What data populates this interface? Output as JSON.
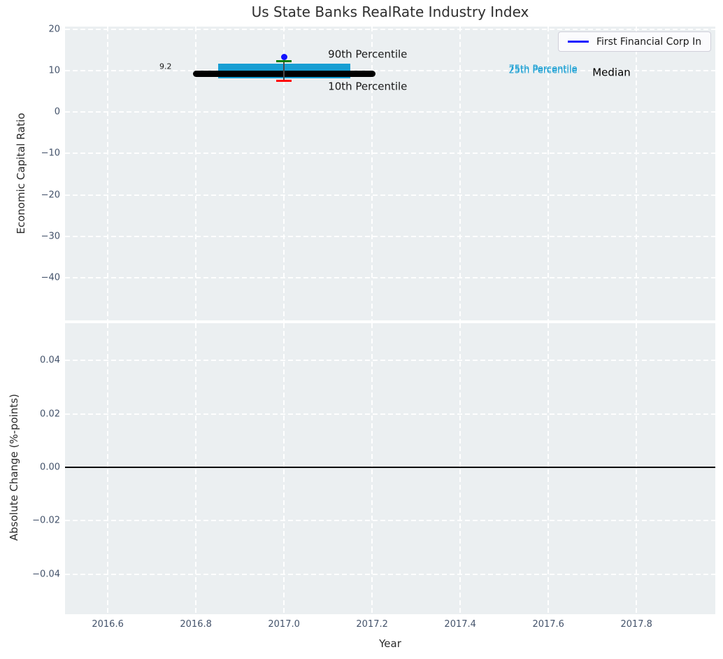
{
  "title": "Us State Banks RealRate Industry Index",
  "legend": {
    "label": "First Financial Corp In",
    "line_color": "#1414ff"
  },
  "colors": {
    "figure_bg": "#ffffff",
    "axes_bg": "#ebeff1",
    "grid": "#ffffff",
    "tick_label": "#44536b",
    "title_text": "#2e2e2e",
    "axis_label": "#2b2b2b",
    "band": "#179ed3",
    "median_line": "#000000",
    "whisker": "#4a4a4a",
    "p90_cap": "#007d00",
    "p10_cap": "#ff0000",
    "company_dot": "#1414ff",
    "zero_line": "#000000"
  },
  "chart_data": [
    {
      "type": "line",
      "panel": "top",
      "ylabel": "Economic Capital Ratio",
      "xlim": [
        2016.503,
        2017.979
      ],
      "ylim": [
        -50.3,
        20.6
      ],
      "grid": true,
      "xticks": {
        "values": [
          2016.6,
          2016.8,
          2017.0,
          2017.2,
          2017.4,
          2017.6,
          2017.8
        ],
        "labels": [
          "2016.6",
          "2016.8",
          "2017.0",
          "2017.2",
          "2017.4",
          "2017.6",
          "2017.8"
        ],
        "show_labels": false
      },
      "yticks": {
        "values": [
          20,
          10,
          0,
          -10,
          -20,
          -30,
          -40
        ],
        "labels": [
          "20",
          "10",
          "0",
          "−10",
          "−20",
          "−30",
          "−40"
        ]
      },
      "series": [
        {
          "name": "First Financial Corp In",
          "x": [
            2017.0
          ],
          "y": [
            13.3
          ],
          "style": "point",
          "color": "#1414ff"
        }
      ],
      "industry_percentiles": {
        "x": 2017.0,
        "p10": 7.5,
        "p25": 8.05,
        "median": 9.2,
        "p75": 11.6,
        "p90": 12.2,
        "band_x": [
          2016.85,
          2017.15
        ],
        "median_x": [
          2016.8,
          2017.2
        ],
        "cap_half_width": 0.017
      },
      "annotations": {
        "value_label": {
          "text": "9.2",
          "x": 2016.745,
          "y": 11.0,
          "ha": "right",
          "size": 11,
          "color": "#1a1a1a"
        },
        "p90_label": {
          "text": "90th Percentile",
          "x": 2017.1,
          "y": 13.9,
          "ha": "left",
          "size": 15,
          "color": "#1a1a1a"
        },
        "p10_label": {
          "text": "10th Percentile",
          "x": 2017.1,
          "y": 6.0,
          "ha": "left",
          "size": 15,
          "color": "#1a1a1a"
        },
        "p75_label": {
          "text": "75th Percentile",
          "x": 2017.51,
          "y": 10.25,
          "ha": "left",
          "size": 13,
          "color": "#179ed3"
        },
        "p25_label": {
          "text": "25th Percentile",
          "x": 2017.51,
          "y": 9.9,
          "ha": "left",
          "size": 13,
          "color": "#179ed3"
        },
        "median_label": {
          "text": "Median",
          "x": 2017.7,
          "y": 9.5,
          "ha": "left",
          "size": 15,
          "color": "#000000"
        }
      }
    },
    {
      "type": "line",
      "panel": "bottom",
      "ylabel": "Absolute Change (%-points)",
      "xlabel": "Year",
      "xlim": [
        2016.503,
        2017.979
      ],
      "ylim": [
        -0.055,
        0.054
      ],
      "grid": true,
      "xticks": {
        "values": [
          2016.6,
          2016.8,
          2017.0,
          2017.2,
          2017.4,
          2017.6,
          2017.8
        ],
        "labels": [
          "2016.6",
          "2016.8",
          "2017.0",
          "2017.2",
          "2017.4",
          "2017.6",
          "2017.8"
        ],
        "show_labels": true
      },
      "yticks": {
        "values": [
          0.04,
          0.02,
          0,
          -0.02,
          -0.04
        ],
        "labels": [
          "0.04",
          "0.02",
          "0.00",
          "−0.02",
          "−0.04"
        ]
      },
      "zero_line": 0.0,
      "series": []
    }
  ]
}
